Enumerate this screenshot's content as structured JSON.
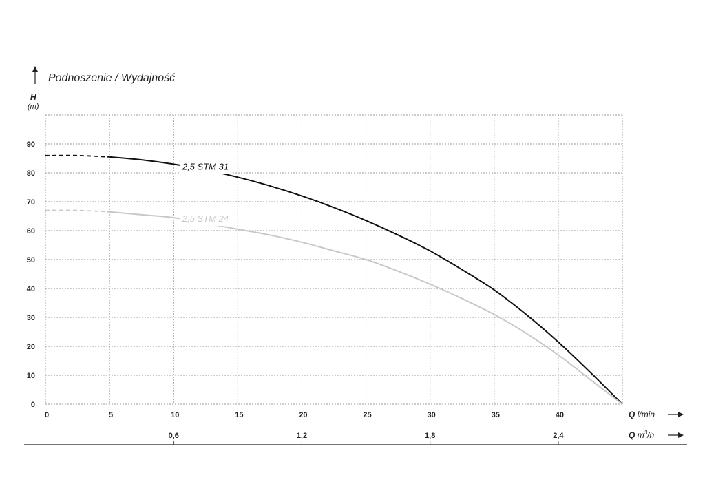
{
  "chart_data": {
    "type": "line",
    "title": "Podnoszenie / Wydajność",
    "ylabel": "H",
    "yunit": "(m)",
    "xlabel_symbol": "Q",
    "xlabel_unit": "l/min",
    "x2label_symbol": "Q",
    "x2label_unit_base": "m",
    "x2label_unit_exp": "3",
    "x2label_unit_tail": "/h",
    "xlim": [
      0,
      45
    ],
    "ylim": [
      0,
      100
    ],
    "yticks": [
      0,
      10,
      20,
      30,
      40,
      50,
      60,
      70,
      80,
      90
    ],
    "xticks": [
      0,
      5,
      10,
      15,
      20,
      25,
      30,
      35,
      40
    ],
    "x2ticks": [
      "0,6",
      "1,2",
      "1,8",
      "2,4"
    ],
    "x2tick_values": [
      0.6,
      1.2,
      1.8,
      2.4
    ],
    "grid": true,
    "series": [
      {
        "name": "2,5 STM 31",
        "color": "#111111",
        "dashed_until": 5,
        "label_at": [
          11,
          82
        ],
        "x": [
          0,
          2.5,
          5,
          7.5,
          10,
          12.5,
          15,
          17.5,
          20,
          22.5,
          25,
          27.5,
          30,
          32.5,
          35,
          37.5,
          40,
          42.5,
          45
        ],
        "y": [
          86,
          86,
          85.5,
          84.5,
          83,
          81,
          78.5,
          75.5,
          72,
          68,
          63.5,
          58.5,
          53,
          46.5,
          39.5,
          31,
          21.5,
          11,
          0
        ]
      },
      {
        "name": "2,5 STM 24",
        "color": "#c8c8c8",
        "dashed_until": 5,
        "label_at": [
          11,
          64
        ],
        "x": [
          0,
          2.5,
          5,
          7.5,
          10,
          12.5,
          15,
          17.5,
          20,
          22.5,
          25,
          27.5,
          30,
          32.5,
          35,
          37.5,
          40,
          42.5,
          45
        ],
        "y": [
          67,
          67,
          66.5,
          65.5,
          64.5,
          62.5,
          60.5,
          58.5,
          56,
          53,
          50,
          46,
          41.5,
          36.5,
          31,
          24.5,
          17,
          8.5,
          0
        ]
      }
    ]
  }
}
